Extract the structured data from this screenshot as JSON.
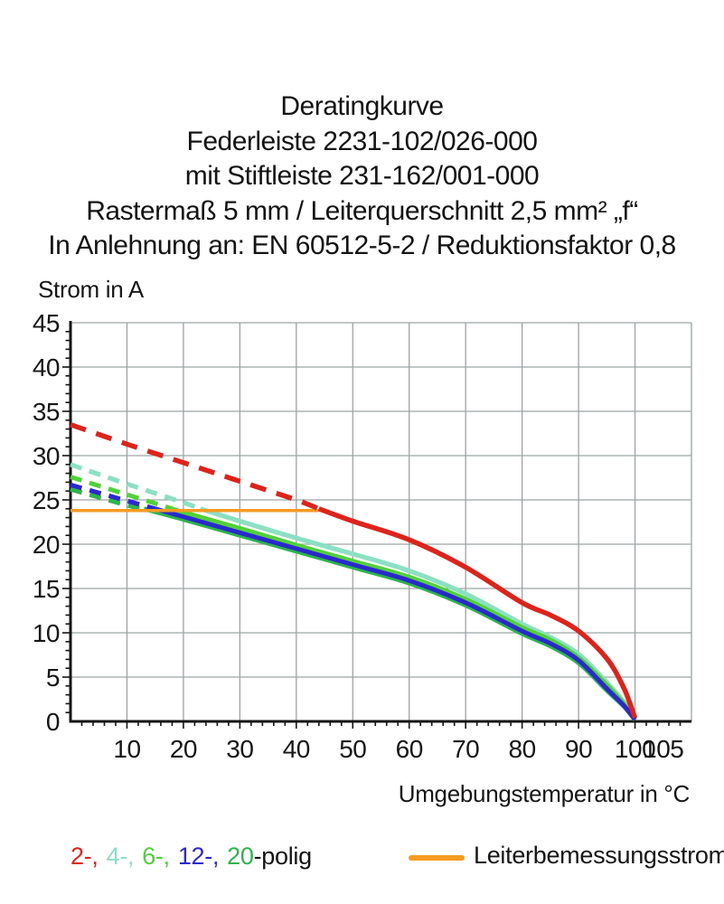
{
  "title_lines": [
    "Deratingkurve",
    "Federleiste 2231-102/026-000",
    "mit Stiftleiste 231-162/001-000",
    "Rastermaß 5 mm / Leiterquerschnitt 2,5 mm² „f“",
    "In Anlehnung an: EN 60512-5-2 / Reduktionsfaktor 0,8"
  ],
  "axes": {
    "y_label": "Strom in A",
    "x_label": "Umgebungstemperatur in °C",
    "y_ticks": [
      0,
      5,
      10,
      15,
      20,
      25,
      30,
      35,
      40,
      45
    ],
    "x_ticks": [
      10,
      20,
      30,
      40,
      50,
      60,
      70,
      80,
      90,
      100,
      105
    ]
  },
  "legend": {
    "items": [
      {
        "text": "2-,",
        "series": "2-polig",
        "color": "#de231b"
      },
      {
        "text": "4-,",
        "series": "4-polig",
        "color": "#8be0c4"
      },
      {
        "text": "6-,",
        "series": "6-polig",
        "color": "#4fd236"
      },
      {
        "text": "12-,",
        "series": "12-polig",
        "color": "#2b28d0"
      },
      {
        "text": "20",
        "series": "20-polig",
        "color": "#2fb44d"
      }
    ],
    "suffix": "-polig",
    "rated_label": "Leiterbemessungsstrom",
    "rated_color": "#f59b22"
  },
  "colors": {
    "grid": "#9ca3a5",
    "axis": "#141414",
    "text": "#161616"
  },
  "chart_data": {
    "type": "line",
    "title": "Deratingkurve",
    "xlabel": "Umgebungstemperatur in °C",
    "ylabel": "Strom in A",
    "xlim": [
      0,
      110
    ],
    "ylim": [
      0,
      45
    ],
    "grid": true,
    "grid_step_x": 10,
    "grid_step_y": 5,
    "legend_position": "bottom",
    "rated_current": {
      "label": "Leiterbemessungsstrom",
      "value": 24,
      "x_start": 0,
      "x_end": 44,
      "color": "#f59b22"
    },
    "series": [
      {
        "name": "4-polig",
        "color": "#8be0c4",
        "z": 1,
        "width": 5.2,
        "dash": "13 9",
        "solid_from": 23,
        "points": [
          [
            0,
            29.0
          ],
          [
            10,
            26.8
          ],
          [
            20,
            24.7
          ],
          [
            23,
            24.0
          ],
          [
            30,
            22.6
          ],
          [
            40,
            20.7
          ],
          [
            50,
            18.9
          ],
          [
            60,
            17.0
          ],
          [
            70,
            14.4
          ],
          [
            80,
            11.0
          ],
          [
            85,
            9.5
          ],
          [
            90,
            7.6
          ],
          [
            95,
            4.4
          ],
          [
            98,
            2.2
          ],
          [
            100,
            0.3
          ]
        ]
      },
      {
        "name": "6-polig",
        "color": "#4fd236",
        "z": 2,
        "width": 5.0,
        "dash": "13 9",
        "solid_from": 18,
        "points": [
          [
            0,
            27.6
          ],
          [
            10,
            25.6
          ],
          [
            18,
            24.0
          ],
          [
            20,
            23.6
          ],
          [
            30,
            21.8
          ],
          [
            40,
            19.9
          ],
          [
            50,
            18.1
          ],
          [
            60,
            16.3
          ],
          [
            70,
            13.8
          ],
          [
            80,
            10.6
          ],
          [
            85,
            9.2
          ],
          [
            90,
            7.2
          ],
          [
            95,
            4.1
          ],
          [
            98,
            2.0
          ],
          [
            100,
            0.25
          ]
        ]
      },
      {
        "name": "20-polig",
        "color": "#2fb44d",
        "z": 3,
        "width": 5.0,
        "dash": "13 9",
        "solid_from": 13,
        "points": [
          [
            0,
            26.2
          ],
          [
            10,
            24.4
          ],
          [
            13,
            24.0
          ],
          [
            20,
            22.8
          ],
          [
            30,
            21.0
          ],
          [
            40,
            19.2
          ],
          [
            50,
            17.4
          ],
          [
            60,
            15.6
          ],
          [
            70,
            13.1
          ],
          [
            80,
            9.9
          ],
          [
            85,
            8.5
          ],
          [
            90,
            6.6
          ],
          [
            95,
            3.5
          ],
          [
            98,
            1.7
          ],
          [
            100,
            0.15
          ]
        ]
      },
      {
        "name": "12-polig",
        "color": "#2b28d0",
        "z": 4,
        "width": 5.0,
        "dash": "13 9",
        "solid_from": 15,
        "points": [
          [
            0,
            26.7
          ],
          [
            10,
            24.9
          ],
          [
            15,
            24.0
          ],
          [
            20,
            23.1
          ],
          [
            30,
            21.3
          ],
          [
            40,
            19.5
          ],
          [
            50,
            17.7
          ],
          [
            60,
            15.9
          ],
          [
            70,
            13.4
          ],
          [
            80,
            10.2
          ],
          [
            85,
            8.8
          ],
          [
            90,
            6.9
          ],
          [
            95,
            3.7
          ],
          [
            98,
            1.8
          ],
          [
            100,
            0.2
          ]
        ]
      },
      {
        "name": "2-polig",
        "color": "#de231b",
        "z": 6,
        "width": 5.5,
        "dash": "18 12",
        "solid_from": 44,
        "points": [
          [
            0,
            33.5
          ],
          [
            10,
            31.3
          ],
          [
            20,
            29.2
          ],
          [
            30,
            27.1
          ],
          [
            40,
            25.0
          ],
          [
            44,
            24.0
          ],
          [
            50,
            22.6
          ],
          [
            60,
            20.5
          ],
          [
            70,
            17.4
          ],
          [
            80,
            13.4
          ],
          [
            85,
            12.0
          ],
          [
            90,
            10.2
          ],
          [
            95,
            7.1
          ],
          [
            98,
            3.8
          ],
          [
            100,
            0.4
          ]
        ]
      }
    ]
  }
}
